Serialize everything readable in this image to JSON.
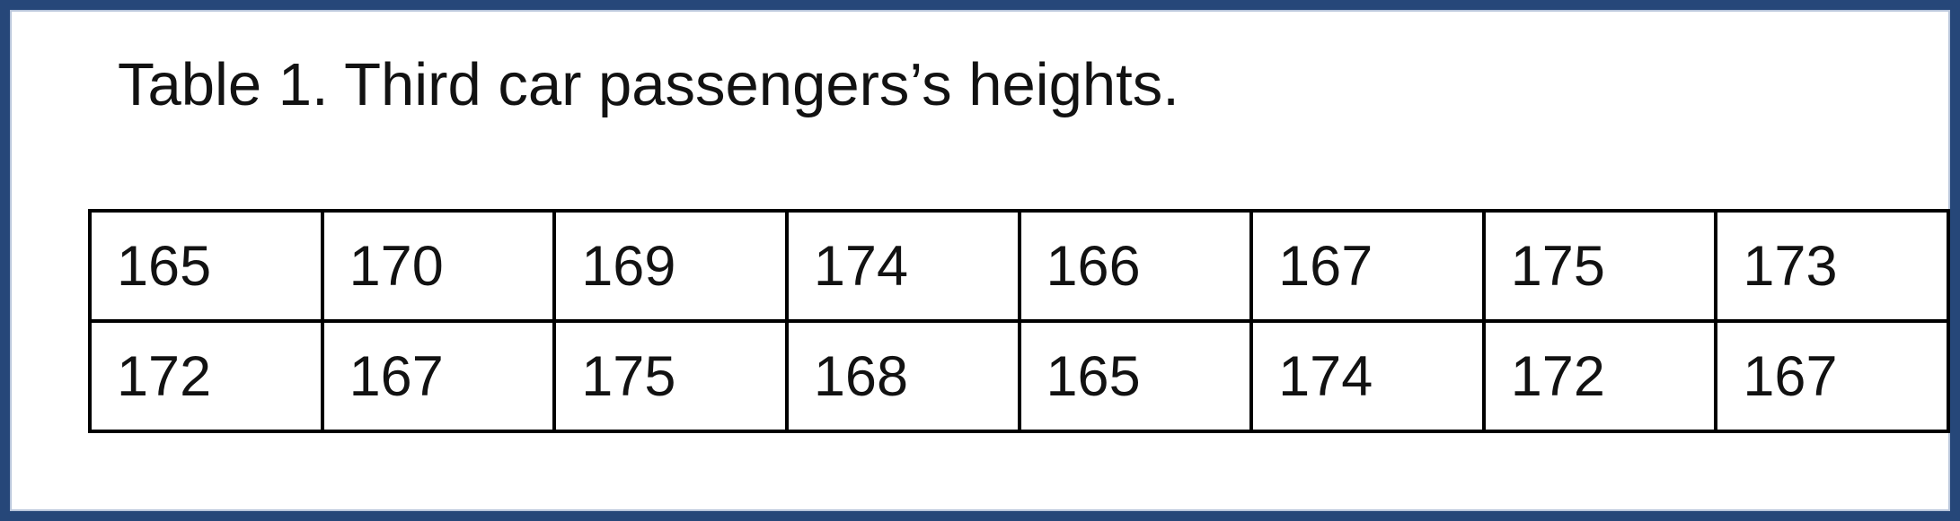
{
  "frame": {
    "border_color": "#264779",
    "background_color": "#ffffff"
  },
  "caption": "Table 1. Third car passengers’s heights.",
  "table": {
    "columns": 8,
    "rows": [
      [
        "165",
        "170",
        "169",
        "174",
        "166",
        "167",
        "175",
        "173"
      ],
      [
        "172",
        "167",
        "175",
        "168",
        "165",
        "174",
        "172",
        "167"
      ]
    ]
  }
}
